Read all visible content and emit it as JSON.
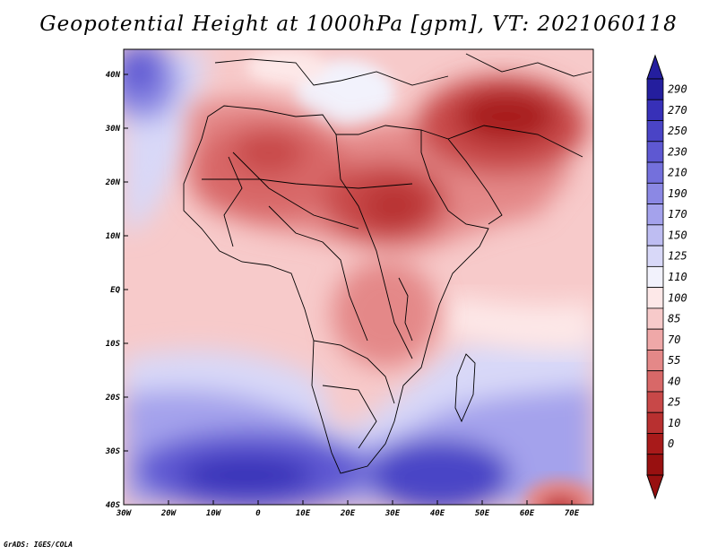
{
  "title": "Geopotential Height at 1000hPa [gpm], VT: 2021060118",
  "credit": "GrADS: IGES/COLA",
  "map": {
    "lat_labels": [
      "40N",
      "30N",
      "20N",
      "10N",
      "EQ",
      "10S",
      "20S",
      "30S",
      "40S"
    ],
    "lon_labels": [
      "30W",
      "20W",
      "10W",
      "0",
      "10E",
      "20E",
      "30E",
      "40E",
      "50E",
      "60E",
      "70E"
    ]
  },
  "colorbar": {
    "levels": [
      "290",
      "270",
      "250",
      "230",
      "210",
      "190",
      "170",
      "150",
      "125",
      "110",
      "100",
      "85",
      "70",
      "55",
      "40",
      "25",
      "10",
      "0"
    ],
    "colors": [
      "#241e9e",
      "#3730b8",
      "#4a44c6",
      "#5e58d2",
      "#7470dc",
      "#8b88e4",
      "#a4a2ec",
      "#bebdf2",
      "#d8d8f8",
      "#f2f2fc",
      "#fde8e8",
      "#f7caca",
      "#efa8a8",
      "#e48888",
      "#d86868",
      "#c84848",
      "#b83030",
      "#a81a1a",
      "#981010"
    ]
  },
  "icons": {
    "colorbar_top": "triangle-up-icon",
    "colorbar_bottom": "triangle-down-icon"
  }
}
